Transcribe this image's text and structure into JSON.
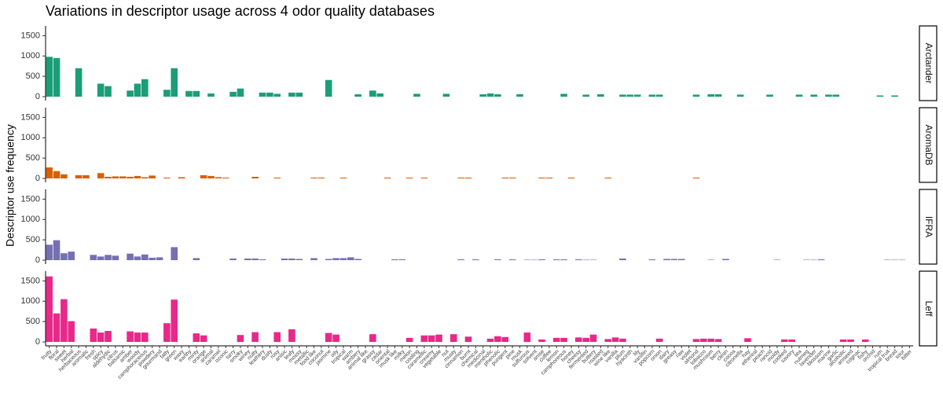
{
  "chart_data": {
    "type": "bar",
    "title": "Variations in descriptor usage across 4 odor quality databases",
    "ylabel": "Descriptor use frequency",
    "categories": [
      "fruity",
      "floral",
      "sweet",
      "herbal",
      "herbaceous",
      "aromatic",
      "fresh",
      "spicy",
      "aldehydic",
      "citrus",
      "balsamic",
      "amber",
      "woody",
      "camphoraceous",
      "powdery",
      "gourmand",
      "fatty",
      "green",
      "waxy",
      "earthy",
      "minty",
      "orange",
      "animal",
      "caramel",
      "ozonic",
      "tarry",
      "smoky",
      "winey",
      "nutty",
      "leathery",
      "dusty",
      "rosy",
      "anisic",
      "leafy",
      "mossy",
      "metallic",
      "food like",
      "coconut",
      "jasmine",
      "oily",
      "tropical",
      "warm",
      "ambery",
      "animal like",
      "grassy",
      "cedar",
      "oriental",
      "musk like",
      "milky",
      "melon",
      "cooling",
      "caramellic",
      "creamy",
      "vegetable",
      "nut",
      "musty",
      "cinnamon",
      "burnt",
      "chemical",
      "medicinal",
      "mentholic",
      "phenolic",
      "pungent",
      "pine",
      "musk",
      "sulfurous",
      "solvent",
      "anise",
      "coffee",
      "lemon",
      "camphoreous",
      "honey",
      "cheesy",
      "fermented",
      "buttery",
      "roasted",
      "wine like",
      "vanilla",
      "plum",
      "hyacinth",
      "lily",
      "vanillin",
      "popcorn",
      "onion",
      "dairy",
      "greasy",
      "raw",
      "violet",
      "almond",
      "tobacco",
      "mushroom",
      "berry",
      "clean",
      "cocoa",
      "citronella",
      "hay",
      "ethereal",
      "peach",
      "rancid",
      "moldy",
      "cooked",
      "savory",
      "tea",
      "nutmeg",
      "lavender",
      "blossom",
      "marine",
      "garlic",
      "alcoholic",
      "aniseed",
      "cognac",
      "fishy",
      "orchid",
      "rum",
      "tropical fruit",
      "bread",
      "sour",
      "bitter"
    ],
    "ylim": [
      0,
      1700
    ],
    "yticks": [
      0,
      500,
      1000,
      1500
    ],
    "series": [
      {
        "name": "Arctander",
        "color": "#1b9e77",
        "values": [
          980,
          950,
          0,
          0,
          700,
          0,
          0,
          320,
          260,
          0,
          0,
          150,
          320,
          430,
          0,
          0,
          170,
          700,
          0,
          140,
          140,
          0,
          80,
          0,
          0,
          120,
          200,
          0,
          0,
          100,
          100,
          70,
          0,
          100,
          100,
          0,
          0,
          0,
          410,
          0,
          0,
          0,
          60,
          0,
          150,
          80,
          0,
          0,
          0,
          0,
          70,
          0,
          0,
          0,
          70,
          0,
          0,
          0,
          0,
          60,
          80,
          60,
          0,
          0,
          60,
          0,
          0,
          0,
          0,
          0,
          70,
          0,
          0,
          50,
          0,
          60,
          0,
          0,
          50,
          50,
          50,
          0,
          50,
          50,
          0,
          0,
          0,
          0,
          50,
          0,
          60,
          60,
          0,
          0,
          50,
          0,
          0,
          0,
          50,
          0,
          0,
          0,
          50,
          0,
          50,
          0,
          50,
          50,
          0,
          0,
          0,
          0,
          0,
          30,
          0,
          30,
          0,
          0
        ]
      },
      {
        "name": "AromaDB",
        "color": "#d95f02",
        "values": [
          270,
          180,
          100,
          0,
          80,
          80,
          0,
          130,
          40,
          50,
          50,
          40,
          60,
          30,
          70,
          0,
          20,
          0,
          30,
          0,
          0,
          80,
          60,
          30,
          20,
          0,
          0,
          0,
          40,
          0,
          0,
          20,
          0,
          0,
          0,
          0,
          20,
          20,
          0,
          0,
          20,
          0,
          0,
          0,
          0,
          0,
          20,
          0,
          0,
          20,
          0,
          20,
          0,
          0,
          0,
          0,
          20,
          20,
          0,
          0,
          0,
          0,
          20,
          20,
          0,
          0,
          0,
          20,
          20,
          0,
          0,
          20,
          0,
          0,
          0,
          0,
          20,
          0,
          0,
          0,
          0,
          0,
          0,
          0,
          0,
          0,
          0,
          0,
          20,
          0,
          0,
          0,
          0,
          0,
          0,
          0,
          0,
          0,
          0,
          0,
          0,
          0,
          0,
          0,
          0,
          0,
          0,
          0,
          0,
          0,
          0,
          0,
          0,
          0,
          0,
          0,
          0,
          0
        ]
      },
      {
        "name": "IFRA",
        "color": "#7570b3",
        "values": [
          380,
          490,
          170,
          210,
          0,
          0,
          130,
          90,
          130,
          110,
          0,
          160,
          90,
          140,
          60,
          70,
          0,
          320,
          0,
          0,
          50,
          0,
          0,
          0,
          0,
          40,
          0,
          40,
          40,
          20,
          0,
          0,
          40,
          40,
          30,
          0,
          50,
          0,
          30,
          50,
          50,
          70,
          30,
          0,
          0,
          0,
          0,
          20,
          20,
          0,
          0,
          0,
          0,
          0,
          0,
          0,
          20,
          0,
          20,
          0,
          0,
          20,
          0,
          20,
          0,
          10,
          10,
          20,
          0,
          20,
          20,
          0,
          20,
          10,
          10,
          0,
          0,
          0,
          40,
          0,
          0,
          0,
          20,
          0,
          30,
          30,
          30,
          0,
          0,
          0,
          10,
          0,
          30,
          0,
          0,
          0,
          0,
          0,
          0,
          10,
          0,
          0,
          0,
          10,
          10,
          20,
          0,
          0,
          0,
          0,
          0,
          0,
          0,
          0,
          10,
          10,
          10,
          0
        ]
      },
      {
        "name": "Leff",
        "color": "#e7298a",
        "values": [
          1610,
          700,
          1050,
          510,
          0,
          0,
          330,
          230,
          270,
          0,
          0,
          260,
          230,
          230,
          0,
          0,
          460,
          1040,
          0,
          0,
          210,
          160,
          0,
          0,
          0,
          0,
          170,
          0,
          240,
          0,
          0,
          240,
          0,
          310,
          0,
          0,
          0,
          0,
          220,
          180,
          0,
          0,
          0,
          0,
          190,
          0,
          0,
          0,
          0,
          100,
          0,
          160,
          160,
          180,
          0,
          190,
          0,
          130,
          0,
          0,
          80,
          140,
          120,
          0,
          0,
          230,
          0,
          60,
          0,
          100,
          100,
          0,
          110,
          100,
          180,
          0,
          70,
          110,
          80,
          0,
          0,
          0,
          0,
          80,
          0,
          0,
          0,
          0,
          70,
          80,
          80,
          70,
          0,
          0,
          0,
          90,
          0,
          0,
          0,
          0,
          60,
          60,
          0,
          0,
          0,
          0,
          0,
          0,
          60,
          60,
          0,
          60,
          0,
          0,
          0,
          0,
          0,
          0
        ]
      }
    ]
  }
}
